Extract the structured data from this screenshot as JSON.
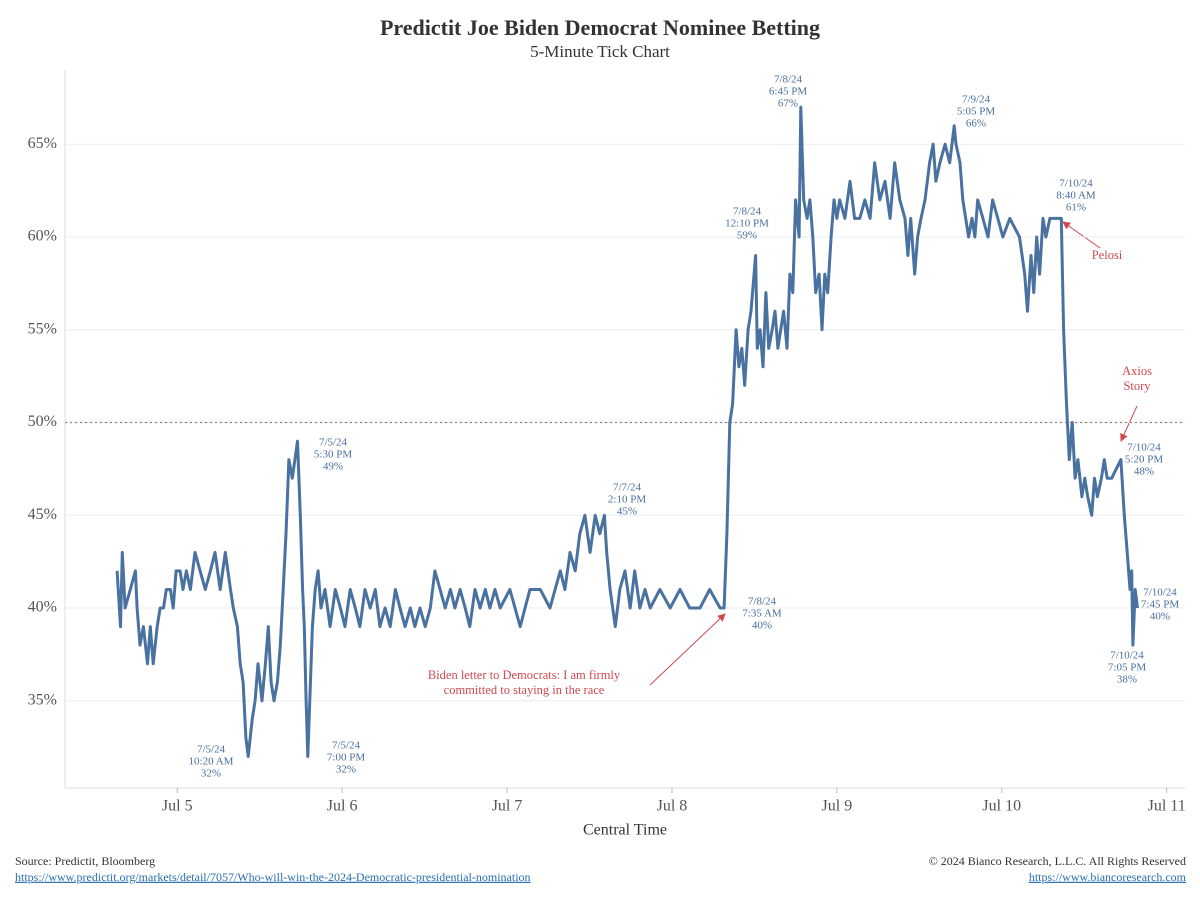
{
  "chart_data": {
    "type": "line",
    "title": "Predictit Joe Biden Democrat Nominee Betting",
    "subtitle": "5-Minute Tick Chart",
    "x_label": "Central Time",
    "color": "#4a72a0",
    "x": [
      "2024-07-04T15:15",
      "2024-07-04T15:45",
      "2024-07-04T16:00",
      "2024-07-04T16:25",
      "2024-07-04T17:10",
      "2024-07-04T17:55",
      "2024-07-04T18:10",
      "2024-07-04T18:35",
      "2024-07-04T19:05",
      "2024-07-04T19:40",
      "2024-07-04T20:05",
      "2024-07-04T20:30",
      "2024-07-04T21:05",
      "2024-07-04T21:30",
      "2024-07-04T22:00",
      "2024-07-04T22:25",
      "2024-07-04T23:00",
      "2024-07-04T23:25",
      "2024-07-04T23:50",
      "2024-07-05T00:25",
      "2024-07-05T00:50",
      "2024-07-05T01:20",
      "2024-07-05T01:55",
      "2024-07-05T02:35",
      "2024-07-05T03:20",
      "2024-07-05T04:05",
      "2024-07-05T04:50",
      "2024-07-05T05:30",
      "2024-07-05T06:15",
      "2024-07-05T07:00",
      "2024-07-05T07:45",
      "2024-07-05T08:10",
      "2024-07-05T08:45",
      "2024-07-05T09:10",
      "2024-07-05T09:35",
      "2024-07-05T10:00",
      "2024-07-05T10:20",
      "2024-07-05T10:55",
      "2024-07-05T11:20",
      "2024-07-05T11:45",
      "2024-07-05T12:20",
      "2024-07-05T12:50",
      "2024-07-05T13:15",
      "2024-07-05T13:40",
      "2024-07-05T14:05",
      "2024-07-05T14:35",
      "2024-07-05T15:00",
      "2024-07-05T15:25",
      "2024-07-05T15:50",
      "2024-07-05T16:15",
      "2024-07-05T16:45",
      "2024-07-05T17:30",
      "2024-07-05T17:55",
      "2024-07-05T18:15",
      "2024-07-05T18:30",
      "2024-07-05T18:45",
      "2024-07-05T19:00",
      "2024-07-05T19:40",
      "2024-07-05T20:05",
      "2024-07-05T20:30",
      "2024-07-05T20:55",
      "2024-07-05T21:30",
      "2024-07-05T22:15",
      "2024-07-05T23:00",
      "2024-07-05T23:45",
      "2024-07-06T00:25",
      "2024-07-06T01:10",
      "2024-07-06T01:55",
      "2024-07-06T02:35",
      "2024-07-06T03:20",
      "2024-07-06T04:05",
      "2024-07-06T04:50",
      "2024-07-06T05:30",
      "2024-07-06T06:15",
      "2024-07-06T07:00",
      "2024-07-06T07:45",
      "2024-07-06T08:25",
      "2024-07-06T09:10",
      "2024-07-06T09:55",
      "2024-07-06T10:35",
      "2024-07-06T11:20",
      "2024-07-06T12:05",
      "2024-07-06T12:50",
      "2024-07-06T13:30",
      "2024-07-06T14:15",
      "2024-07-06T15:00",
      "2024-07-06T15:45",
      "2024-07-06T16:25",
      "2024-07-06T17:10",
      "2024-07-06T17:55",
      "2024-07-06T18:35",
      "2024-07-06T19:20",
      "2024-07-06T20:05",
      "2024-07-06T20:50",
      "2024-07-06T21:30",
      "2024-07-06T22:15",
      "2024-07-06T23:00",
      "2024-07-07T00:25",
      "2024-07-07T01:55",
      "2024-07-07T03:20",
      "2024-07-07T04:50",
      "2024-07-07T06:15",
      "2024-07-07T07:00",
      "2024-07-07T07:45",
      "2024-07-07T08:25",
      "2024-07-07T09:10",
      "2024-07-07T09:55",
      "2024-07-07T10:35",
      "2024-07-07T11:20",
      "2024-07-07T12:05",
      "2024-07-07T12:50",
      "2024-07-07T13:30",
      "2024-07-07T14:10",
      "2024-07-07T14:30",
      "2024-07-07T15:00",
      "2024-07-07T15:45",
      "2024-07-07T16:25",
      "2024-07-07T17:10",
      "2024-07-07T17:55",
      "2024-07-07T18:35",
      "2024-07-07T19:20",
      "2024-07-07T20:05",
      "2024-07-07T20:50",
      "2024-07-07T22:15",
      "2024-07-07T23:45",
      "2024-07-08T01:10",
      "2024-07-08T02:35",
      "2024-07-08T04:05",
      "2024-07-08T05:30",
      "2024-07-08T07:00",
      "2024-07-08T07:35",
      "2024-07-08T08:00",
      "2024-07-08T08:25",
      "2024-07-08T08:50",
      "2024-07-08T09:20",
      "2024-07-08T09:45",
      "2024-07-08T10:10",
      "2024-07-08T10:35",
      "2024-07-08T11:05",
      "2024-07-08T11:30",
      "2024-07-08T12:10",
      "2024-07-08T12:25",
      "2024-07-08T12:50",
      "2024-07-08T13:15",
      "2024-07-08T13:40",
      "2024-07-08T14:05",
      "2024-07-08T14:35",
      "2024-07-08T15:00",
      "2024-07-08T15:25",
      "2024-07-08T15:50",
      "2024-07-08T16:15",
      "2024-07-08T16:45",
      "2024-07-08T17:10",
      "2024-07-08T17:35",
      "2024-07-08T18:00",
      "2024-07-08T18:30",
      "2024-07-08T18:45",
      "2024-07-08T19:10",
      "2024-07-08T19:40",
      "2024-07-08T20:05",
      "2024-07-08T20:30",
      "2024-07-08T20:55",
      "2024-07-08T21:25",
      "2024-07-08T21:50",
      "2024-07-08T22:15",
      "2024-07-08T22:40",
      "2024-07-08T23:10",
      "2024-07-08T23:35",
      "2024-07-09T00:00",
      "2024-07-09T00:25",
      "2024-07-09T01:10",
      "2024-07-09T01:55",
      "2024-07-09T02:35",
      "2024-07-09T03:20",
      "2024-07-09T04:05",
      "2024-07-09T04:50",
      "2024-07-09T05:30",
      "2024-07-09T06:15",
      "2024-07-09T07:00",
      "2024-07-09T07:45",
      "2024-07-09T08:25",
      "2024-07-09T09:10",
      "2024-07-09T09:55",
      "2024-07-09T10:20",
      "2024-07-09T10:45",
      "2024-07-09T11:20",
      "2024-07-09T11:45",
      "2024-07-09T12:15",
      "2024-07-09T12:50",
      "2024-07-09T13:30",
      "2024-07-09T14:00",
      "2024-07-09T14:25",
      "2024-07-09T15:00",
      "2024-07-09T15:45",
      "2024-07-09T16:25",
      "2024-07-09T17:05",
      "2024-07-09T17:20",
      "2024-07-09T17:55",
      "2024-07-09T18:20",
      "2024-07-09T18:45",
      "2024-07-09T19:10",
      "2024-07-09T19:40",
      "2024-07-09T20:05",
      "2024-07-09T20:30",
      "2024-07-09T21:15",
      "2024-07-09T22:00",
      "2024-07-09T22:40",
      "2024-07-09T23:25",
      "2024-07-10T00:10",
      "2024-07-10T01:10",
      "2024-07-10T02:35",
      "2024-07-10T03:20",
      "2024-07-10T03:45",
      "2024-07-10T04:15",
      "2024-07-10T04:40",
      "2024-07-10T05:05",
      "2024-07-10T05:30",
      "2024-07-10T06:00",
      "2024-07-10T06:25",
      "2024-07-10T07:00",
      "2024-07-10T07:45",
      "2024-07-10T08:40",
      "2024-07-10T09:00",
      "2024-07-10T09:25",
      "2024-07-10T09:50",
      "2024-07-10T10:15",
      "2024-07-10T10:40",
      "2024-07-10T11:05",
      "2024-07-10T11:40",
      "2024-07-10T12:05",
      "2024-07-10T12:30",
      "2024-07-10T13:05",
      "2024-07-10T13:30",
      "2024-07-10T13:55",
      "2024-07-10T14:30",
      "2024-07-10T14:55",
      "2024-07-10T15:20",
      "2024-07-10T16:00",
      "2024-07-10T17:20",
      "2024-07-10T17:50",
      "2024-07-10T18:15",
      "2024-07-10T18:40",
      "2024-07-10T18:55",
      "2024-07-10T19:00",
      "2024-07-10T19:05",
      "2024-07-10T19:25",
      "2024-07-10T19:45"
    ],
    "values": [
      42,
      39,
      43,
      40,
      41,
      42,
      40,
      38,
      39,
      37,
      39,
      37,
      39,
      40,
      40,
      41,
      41,
      40,
      42,
      42,
      41,
      42,
      41,
      43,
      42,
      41,
      42,
      43,
      41,
      43,
      41,
      40,
      39,
      37,
      36,
      33,
      32,
      34,
      35,
      37,
      35,
      37,
      39,
      36,
      35,
      36,
      38,
      41,
      44,
      48,
      47,
      49,
      45,
      41,
      39,
      35,
      32,
      39,
      41,
      42,
      40,
      41,
      39,
      41,
      40,
      39,
      41,
      40,
      39,
      41,
      40,
      41,
      39,
      40,
      39,
      41,
      40,
      39,
      40,
      39,
      40,
      39,
      40,
      42,
      41,
      40,
      41,
      40,
      41,
      40,
      39,
      41,
      40,
      41,
      40,
      41,
      40,
      41,
      39,
      41,
      41,
      40,
      41,
      42,
      41,
      43,
      42,
      44,
      45,
      43,
      45,
      44,
      45,
      43,
      41,
      39,
      41,
      42,
      40,
      42,
      40,
      41,
      40,
      41,
      40,
      41,
      40,
      40,
      41,
      40,
      40,
      44,
      50,
      51,
      55,
      53,
      54,
      52,
      55,
      56,
      59,
      54,
      55,
      53,
      57,
      54,
      55,
      56,
      54,
      55,
      56,
      54,
      58,
      57,
      62,
      60,
      67,
      62,
      61,
      62,
      60,
      57,
      58,
      55,
      58,
      57,
      60,
      62,
      61,
      62,
      61,
      63,
      61,
      61,
      62,
      61,
      64,
      62,
      63,
      61,
      64,
      62,
      61,
      59,
      61,
      58,
      60,
      61,
      62,
      64,
      65,
      63,
      64,
      65,
      64,
      66,
      65,
      64,
      62,
      61,
      60,
      61,
      60,
      62,
      61,
      60,
      62,
      61,
      60,
      61,
      60,
      58,
      56,
      59,
      57,
      60,
      58,
      61,
      60,
      61,
      61,
      61,
      55,
      51,
      48,
      50,
      47,
      48,
      46,
      47,
      46,
      45,
      47,
      46,
      47,
      48,
      47,
      47,
      48,
      45,
      43,
      41,
      42,
      40,
      38,
      41,
      40
    ],
    "xlim": [
      "2024-07-04T07:40",
      "2024-07-11T02:40"
    ],
    "xticks": [
      {
        "value": "2024-07-05T00:00",
        "label": "Jul 5"
      },
      {
        "value": "2024-07-06T00:00",
        "label": "Jul 6"
      },
      {
        "value": "2024-07-07T00:00",
        "label": "Jul 7"
      },
      {
        "value": "2024-07-08T00:00",
        "label": "Jul 8"
      },
      {
        "value": "2024-07-09T00:00",
        "label": "Jul 9"
      },
      {
        "value": "2024-07-10T00:00",
        "label": "Jul 10"
      },
      {
        "value": "2024-07-11T00:00",
        "label": "Jul 11"
      }
    ],
    "ylim": [
      30.3,
      69
    ],
    "yticks": [
      {
        "value": 35,
        "label": "35%"
      },
      {
        "value": 40,
        "label": "40%"
      },
      {
        "value": 45,
        "label": "45%"
      },
      {
        "value": 50,
        "label": "50%"
      },
      {
        "value": 55,
        "label": "55%"
      },
      {
        "value": 60,
        "label": "60%"
      },
      {
        "value": 65,
        "label": "65%"
      }
    ],
    "grid": true,
    "reference_line": 50,
    "annotations": [
      {
        "lines": [
          "7/5/24",
          "10:20 AM",
          "32%"
        ]
      },
      {
        "lines": [
          "7/5/24",
          "7:00 PM",
          "32%"
        ]
      },
      {
        "lines": [
          "7/5/24",
          "5:30 PM",
          "49%"
        ]
      },
      {
        "lines": [
          "7/7/24",
          "2:10 PM",
          "45%"
        ]
      },
      {
        "lines": [
          "7/8/24",
          "7:35 AM",
          "40%"
        ]
      },
      {
        "lines": [
          "7/8/24",
          "12:10 PM",
          "59%"
        ]
      },
      {
        "lines": [
          "7/8/24",
          "6:45 PM",
          "67%"
        ]
      },
      {
        "lines": [
          "7/9/24",
          "5:05 PM",
          "66%"
        ]
      },
      {
        "lines": [
          "7/10/24",
          "8:40 AM",
          "61%"
        ]
      },
      {
        "lines": [
          "7/10/24",
          "5:20 PM",
          "48%"
        ]
      },
      {
        "lines": [
          "7/10/24",
          "7:45 PM",
          "40%"
        ]
      },
      {
        "lines": [
          "7/10/24",
          "7:05 PM",
          "38%"
        ]
      }
    ],
    "notes": [
      {
        "lines": [
          "Pelosi"
        ]
      },
      {
        "lines": [
          "Axios",
          "Story"
        ]
      },
      {
        "lines": [
          "Biden letter to Democrats: I am firmly",
          "committed to staying in the race"
        ]
      }
    ]
  },
  "footer": {
    "source": "Source: Predictit, Bloomberg",
    "source_url": "https://www.predictit.org/markets/detail/7057/Who-will-win-the-2024-Democratic-presidential-nomination",
    "copyright": "© 2024 Bianco Research, L.L.C. All Rights Reserved",
    "site_url": "https://www.biancoresearch.com"
  }
}
